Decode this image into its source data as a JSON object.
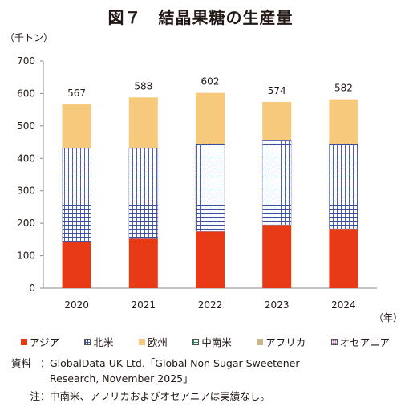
{
  "title": "図７　結晶果糖の生産量",
  "chart_data": {
    "type": "bar",
    "stacked": true,
    "unit_label": "（千トン）",
    "x_unit_label": "（年）",
    "categories": [
      "2020",
      "2021",
      "2022",
      "2023",
      "2024"
    ],
    "totals": [
      "567",
      "588",
      "602",
      "574",
      "582"
    ],
    "ylim": [
      0,
      700
    ],
    "yticks": [
      "0",
      "100",
      "200",
      "300",
      "400",
      "500",
      "600",
      "700"
    ],
    "grid": false,
    "legend_position": "bottom",
    "series": [
      {
        "name": "アジア",
        "color": "#e83a17",
        "values": [
          143,
          153,
          175,
          195,
          183
        ]
      },
      {
        "name": "北米",
        "color": "#3a4fa0",
        "pattern": "grid",
        "values": [
          290,
          280,
          270,
          260,
          262
        ]
      },
      {
        "name": "欧州",
        "color": "#f6c97d",
        "values": [
          134,
          155,
          157,
          119,
          137
        ]
      },
      {
        "name": "中南米",
        "color": "#2e8b57",
        "pattern": "grid",
        "values": [
          0,
          0,
          0,
          0,
          0
        ]
      },
      {
        "name": "アフリカ",
        "color": "#c9b48a",
        "values": [
          0,
          0,
          0,
          0,
          0
        ]
      },
      {
        "name": "オセアニア",
        "color": "#b04aa0",
        "pattern": "dots",
        "values": [
          0,
          0,
          0,
          0,
          0
        ]
      }
    ]
  },
  "source": {
    "label": "資料",
    "text_line1": "GlobalData UK Ltd.「Global Non Sugar Sweetener",
    "text_line2": "Research, November 2025」"
  },
  "note": {
    "label": "注",
    "text": "中南米、アフリカおよびオセアニアは実績なし。"
  }
}
